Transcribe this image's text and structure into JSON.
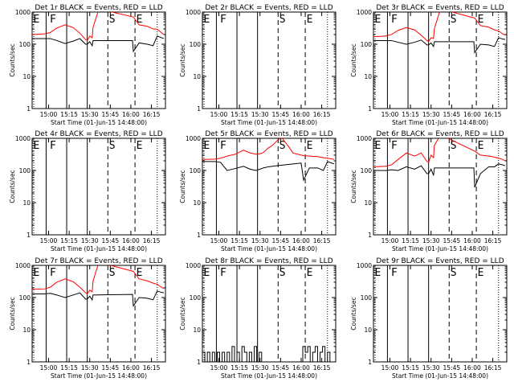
{
  "chart_data": [
    {
      "type": "line",
      "title": "Det 1r BLACK = Events, RED = LLD",
      "xlabel": "Start Time (01-Jun-15 14:48:00)",
      "ylabel": "Counts/sec",
      "yscale": "log",
      "ylim": [
        1,
        1000
      ],
      "xlim": [
        14.8,
        16.42
      ],
      "ytick_labels": [
        "1",
        "10",
        "100",
        "1000"
      ],
      "xtick_labels": [
        "15:00",
        "15:15",
        "15:30",
        "15:45",
        "16:00",
        "16:15"
      ],
      "markers": [
        "E",
        "F",
        "S",
        "E"
      ],
      "series": [
        {
          "name": "Events",
          "color": "#000000",
          "x": [
            14.8,
            14.95,
            15.02,
            15.1,
            15.2,
            15.3,
            15.38,
            15.45,
            15.47,
            15.5,
            15.53,
            15.54,
            16.02,
            16.03,
            16.1,
            16.2,
            16.27,
            16.32,
            16.37,
            16.4
          ],
          "y": [
            150,
            150,
            150,
            130,
            105,
            125,
            150,
            100,
            100,
            120,
            90,
            130,
            130,
            60,
            110,
            100,
            90,
            180,
            160,
            150
          ]
        },
        {
          "name": "LLD",
          "color": "#ff0000",
          "x": [
            14.8,
            14.95,
            15.02,
            15.1,
            15.2,
            15.3,
            15.38,
            15.45,
            15.47,
            15.5,
            15.53,
            15.54,
            15.58,
            15.6,
            15.64,
            16.03,
            16.1,
            16.2,
            16.27,
            16.32,
            16.37,
            16.4
          ],
          "y": [
            200,
            210,
            230,
            320,
            400,
            330,
            220,
            140,
            130,
            180,
            160,
            330,
            700,
            1000,
            1200,
            700,
            400,
            360,
            300,
            290,
            230,
            200
          ]
        }
      ]
    },
    {
      "type": "line",
      "title": "Det 2r BLACK = Events, RED = LLD",
      "xlabel": "Start Time (01-Jun-15 14:48:00)",
      "ylabel": "Counts/sec",
      "yscale": "log",
      "ylim": [
        1,
        1000
      ],
      "xlim": [
        14.8,
        16.42
      ],
      "ytick_labels": [
        "1",
        "10",
        "100",
        "1000"
      ],
      "xtick_labels": [
        "15:00",
        "15:15",
        "15:30",
        "15:45",
        "16:00",
        "16:15"
      ],
      "markers": [
        "E",
        "F",
        "S",
        "E"
      ],
      "series": []
    },
    {
      "type": "line",
      "title": "Det 3r BLACK = Events, RED = LLD",
      "xlabel": "Start Time (01-Jun-15 14:48:00)",
      "ylabel": "Counts/sec",
      "yscale": "log",
      "ylim": [
        1,
        1000
      ],
      "xlim": [
        14.8,
        16.42
      ],
      "ytick_labels": [
        "1",
        "10",
        "100",
        "1000"
      ],
      "xtick_labels": [
        "15:00",
        "15:15",
        "15:30",
        "15:45",
        "16:00",
        "16:15"
      ],
      "markers": [
        "E",
        "F",
        "S",
        "E"
      ],
      "series": [
        {
          "name": "Events",
          "color": "#000000",
          "x": [
            14.8,
            14.95,
            15.02,
            15.1,
            15.2,
            15.3,
            15.38,
            15.45,
            15.47,
            15.5,
            15.53,
            15.54,
            16.02,
            16.03,
            16.1,
            16.2,
            16.27,
            16.32,
            16.37,
            16.4
          ],
          "y": [
            130,
            130,
            130,
            115,
            100,
            115,
            135,
            95,
            95,
            110,
            85,
            120,
            120,
            55,
            100,
            95,
            85,
            160,
            145,
            140
          ]
        },
        {
          "name": "LLD",
          "color": "#ff0000",
          "x": [
            14.8,
            14.95,
            15.02,
            15.1,
            15.2,
            15.3,
            15.38,
            15.45,
            15.47,
            15.5,
            15.53,
            15.54,
            15.58,
            15.6,
            15.64,
            16.03,
            16.1,
            16.2,
            16.27,
            16.32,
            16.37,
            16.4
          ],
          "y": [
            170,
            180,
            200,
            270,
            330,
            280,
            190,
            130,
            120,
            160,
            150,
            300,
            650,
            950,
            1200,
            650,
            380,
            340,
            280,
            260,
            210,
            190
          ]
        }
      ]
    },
    {
      "type": "line",
      "title": "Det 4r BLACK = Events, RED = LLD",
      "xlabel": "Start Time (01-Jun-15 14:48:00)",
      "ylabel": "Counts/sec",
      "yscale": "log",
      "ylim": [
        1,
        1000
      ],
      "xlim": [
        14.8,
        16.42
      ],
      "ytick_labels": [
        "1",
        "10",
        "100",
        "1000"
      ],
      "xtick_labels": [
        "15:00",
        "15:15",
        "15:30",
        "15:45",
        "16:00",
        "16:15"
      ],
      "markers": [
        "E",
        "F",
        "S",
        "E"
      ],
      "series": []
    },
    {
      "type": "line",
      "title": "Det 5r BLACK = Events, RED = LLD",
      "xlabel": "Start Time (01-Jun-15 14:48:00)",
      "ylabel": "Counts/sec",
      "yscale": "log",
      "ylim": [
        1,
        1000
      ],
      "xlim": [
        14.8,
        16.42
      ],
      "ytick_labels": [
        "1",
        "10",
        "100",
        "1000"
      ],
      "xtick_labels": [
        "15:00",
        "15:15",
        "15:30",
        "15:45",
        "16:00",
        "16:15"
      ],
      "markers": [
        "E",
        "F",
        "S",
        "E"
      ],
      "series": [
        {
          "name": "Events",
          "color": "#000000",
          "x": [
            14.8,
            14.95,
            15.02,
            15.1,
            15.2,
            15.3,
            15.38,
            15.45,
            15.5,
            15.54,
            15.6,
            15.7,
            15.8,
            15.9,
            16.0,
            16.03,
            16.1,
            16.2,
            16.27,
            16.32,
            16.37,
            16.4
          ],
          "y": [
            190,
            190,
            180,
            100,
            115,
            135,
            110,
            100,
            110,
            120,
            130,
            140,
            150,
            160,
            170,
            50,
            120,
            120,
            100,
            190,
            170,
            160
          ]
        },
        {
          "name": "LLD",
          "color": "#ff0000",
          "x": [
            14.8,
            14.95,
            15.02,
            15.1,
            15.2,
            15.3,
            15.38,
            15.45,
            15.5,
            15.54,
            15.6,
            15.65,
            15.72,
            15.76,
            15.8,
            15.86,
            15.9,
            16.0,
            16.03,
            16.1,
            16.2,
            16.27,
            16.32,
            16.37,
            16.4
          ],
          "y": [
            220,
            225,
            240,
            280,
            320,
            430,
            350,
            320,
            330,
            360,
            500,
            600,
            900,
            1100,
            800,
            500,
            350,
            300,
            290,
            280,
            270,
            250,
            240,
            230,
            220
          ]
        }
      ]
    },
    {
      "type": "line",
      "title": "Det 6r BLACK = Events, RED = LLD",
      "xlabel": "Start Time (01-Jun-15 14:48:00)",
      "ylabel": "Counts/sec",
      "yscale": "log",
      "ylim": [
        1,
        1000
      ],
      "xlim": [
        14.8,
        16.42
      ],
      "ytick_labels": [
        "1",
        "10",
        "100",
        "1000"
      ],
      "xtick_labels": [
        "15:00",
        "15:15",
        "15:30",
        "15:45",
        "16:00",
        "16:15"
      ],
      "markers": [
        "E",
        "F",
        "S",
        "E"
      ],
      "series": [
        {
          "name": "Events",
          "color": "#000000",
          "x": [
            14.8,
            14.95,
            15.02,
            15.1,
            15.2,
            15.3,
            15.38,
            15.45,
            15.47,
            15.5,
            15.53,
            15.54,
            16.02,
            16.03,
            16.1,
            16.2,
            16.27,
            16.32,
            16.37,
            16.4
          ],
          "y": [
            100,
            100,
            105,
            100,
            130,
            110,
            140,
            80,
            80,
            110,
            70,
            120,
            120,
            30,
            80,
            130,
            130,
            160,
            150,
            140
          ]
        },
        {
          "name": "LLD",
          "color": "#ff0000",
          "x": [
            14.8,
            14.95,
            15.02,
            15.1,
            15.2,
            15.3,
            15.38,
            15.45,
            15.47,
            15.5,
            15.53,
            15.54,
            15.58,
            15.6,
            15.64,
            16.03,
            16.1,
            16.2,
            16.27,
            16.32,
            16.37,
            16.4
          ],
          "y": [
            130,
            135,
            150,
            220,
            350,
            280,
            350,
            190,
            180,
            300,
            250,
            600,
            900,
            1100,
            1200,
            400,
            300,
            280,
            260,
            240,
            220,
            200
          ]
        }
      ]
    },
    {
      "type": "line",
      "title": "Det 7r BLACK = Events, RED = LLD",
      "xlabel": "Start Time (01-Jun-15 14:48:00)",
      "ylabel": "Counts/sec",
      "yscale": "log",
      "ylim": [
        1,
        1000
      ],
      "xlim": [
        14.8,
        16.42
      ],
      "ytick_labels": [
        "1",
        "10",
        "100",
        "1000"
      ],
      "xtick_labels": [
        "15:00",
        "15:15",
        "15:30",
        "15:45",
        "16:00",
        "16:15"
      ],
      "markers": [
        "E",
        "F",
        "S",
        "E"
      ],
      "series": [
        {
          "name": "Events",
          "color": "#000000",
          "x": [
            14.8,
            14.95,
            15.02,
            15.1,
            15.2,
            15.3,
            15.38,
            15.45,
            15.47,
            15.5,
            15.53,
            15.54,
            16.02,
            16.03,
            16.1,
            16.2,
            16.27,
            16.32,
            16.37,
            16.4
          ],
          "y": [
            130,
            130,
            135,
            120,
            100,
            120,
            140,
            90,
            90,
            110,
            85,
            120,
            125,
            55,
            100,
            95,
            85,
            160,
            145,
            140
          ]
        },
        {
          "name": "LLD",
          "color": "#ff0000",
          "x": [
            14.8,
            14.95,
            15.02,
            15.1,
            15.2,
            15.3,
            15.38,
            15.45,
            15.47,
            15.5,
            15.53,
            15.54,
            15.58,
            15.6,
            15.64,
            16.03,
            16.1,
            16.2,
            16.27,
            16.32,
            16.37,
            16.4
          ],
          "y": [
            180,
            185,
            210,
            300,
            380,
            310,
            210,
            140,
            130,
            170,
            150,
            320,
            700,
            1000,
            1200,
            650,
            380,
            330,
            280,
            260,
            210,
            190
          ]
        }
      ]
    },
    {
      "type": "line",
      "title": "Det 8r BLACK = Events, RED = LLD",
      "xlabel": "Start Time (01-Jun-15 14:48:00)",
      "ylabel": "Counts/sec",
      "yscale": "log",
      "ylim": [
        1,
        1000
      ],
      "xlim": [
        14.8,
        16.42
      ],
      "ytick_labels": [
        "1",
        "10",
        "100",
        "1000"
      ],
      "xtick_labels": [
        "15:00",
        "15:15",
        "15:30",
        "15:45",
        "16:00",
        "16:15"
      ],
      "markers": [
        "E",
        "F",
        "S",
        "E"
      ],
      "series": [
        {
          "name": "Events",
          "color": "#000000",
          "step": true,
          "x": [
            14.8,
            14.83,
            14.86,
            14.89,
            14.92,
            14.95,
            14.98,
            15.01,
            15.04,
            15.07,
            15.1,
            15.13,
            15.16,
            15.19,
            15.22,
            15.25,
            15.28,
            15.31,
            15.34,
            15.37,
            15.4,
            15.43,
            15.46,
            15.49,
            15.52,
            15.55,
            16.02,
            16.05,
            16.08,
            16.11,
            16.14,
            16.17,
            16.2,
            16.23,
            16.26,
            16.29,
            16.32,
            16.35
          ],
          "y": [
            2,
            1,
            2,
            1,
            2,
            1,
            2,
            1,
            2,
            1,
            2,
            1,
            3,
            1,
            2,
            1,
            3,
            2,
            1,
            2,
            1,
            3,
            1,
            2,
            1,
            1,
            3,
            2,
            3,
            1,
            2,
            3,
            1,
            2,
            3,
            1,
            2,
            1
          ]
        }
      ]
    },
    {
      "type": "line",
      "title": "Det 9r BLACK = Events, RED = LLD",
      "xlabel": "Start Time (01-Jun-15 14:48:00)",
      "ylabel": "Counts/sec",
      "yscale": "log",
      "ylim": [
        1,
        1000
      ],
      "xlim": [
        14.8,
        16.42
      ],
      "ytick_labels": [
        "1",
        "10",
        "100",
        "1000"
      ],
      "xtick_labels": [
        "15:00",
        "15:15",
        "15:30",
        "15:45",
        "16:00",
        "16:15"
      ],
      "markers": [
        "E",
        "F",
        "S",
        "E"
      ],
      "series": []
    }
  ],
  "vlines": {
    "solid": [
      14.97,
      15.22,
      15.47
    ],
    "dashed": [
      15.72,
      16.05
    ],
    "dotted": [
      14.82,
      16.32
    ]
  },
  "marker_positions": [
    14.805,
    15.005,
    15.725,
    16.055
  ],
  "xtick_values": [
    15.0,
    15.25,
    15.5,
    15.75,
    16.0,
    16.25
  ]
}
